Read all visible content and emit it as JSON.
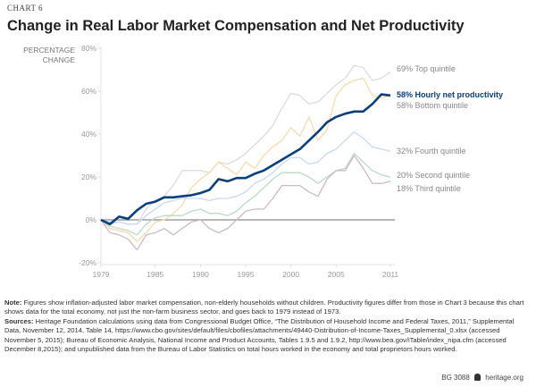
{
  "chart_label": "CHART 6",
  "title": "Change in Real Labor Market Compensation and Net Productivity",
  "note_label": "Note:",
  "note_text": "Figures show inflation-adjusted labor market compensation, non-elderly households without children. Productivity figures differ from those in Chart 3 because this chart shows data for the total economy, not just the non-farm business sector, and goes back to 1979 instead of 1973.",
  "sources_label": "Sources:",
  "sources_text": "Heritage Foundation calculations using data from Congressional Budget Office, “The Distribution of Household Income and Federal Taxes, 2011,” Supplemental Data, November 12, 2014, Table 14, https://www.cbo.gov/sites/default/files/cbofiles/attachments/49440-Distribution-of-Income-Taxes_Supplemental_0.xlsx (accessed November 5, 2015); Bureau of Economic Analysis, National Income and Product Accounts, Tables 1.9.5 and 1.9.2, http://www.bea.gov/iTable/index_nipa.cfm (accessed December 8,2015); and unpublished data from the Bureau of Labor Statistics on total hours worked in the economy and total proprietors hours worked.",
  "footer": {
    "code": "BG 3088",
    "logo_icon": "liberty-bell-icon",
    "site": "heritage.org"
  },
  "chart_data": {
    "type": "line",
    "ylabel_line1": "PERCENTAGE",
    "ylabel_line2": "CHANGE",
    "xlim": [
      1979,
      2011
    ],
    "ylim": [
      -20,
      80
    ],
    "x_ticks": [
      "1979",
      "1985",
      "1990",
      "1995",
      "2000",
      "2005",
      "2011"
    ],
    "y_ticks": [
      "80%",
      "60%",
      "40%",
      "20%",
      "0%",
      "-20%"
    ],
    "x": [
      1979,
      1980,
      1981,
      1982,
      1983,
      1984,
      1985,
      1986,
      1987,
      1988,
      1989,
      1990,
      1991,
      1992,
      1993,
      1994,
      1995,
      1996,
      1997,
      1998,
      1999,
      2000,
      2001,
      2002,
      2003,
      2004,
      2005,
      2006,
      2007,
      2008,
      2009,
      2010,
      2011
    ],
    "series": [
      {
        "name": "Top quintile",
        "label": "69% Top quintile",
        "color": "#dcdcdc",
        "values": [
          0,
          -2,
          -1,
          -2,
          -2,
          5,
          9,
          11,
          16,
          23,
          23,
          23,
          22,
          27,
          26,
          28,
          31,
          35,
          39,
          44,
          52,
          59,
          58,
          54,
          55,
          59,
          63,
          66,
          72,
          71,
          65,
          66,
          69
        ]
      },
      {
        "name": "Bottom quintile",
        "label": "58% Bottom quintile",
        "color": "#f6dcaa",
        "values": [
          0,
          -4,
          -5,
          -6,
          -10,
          -6,
          -1,
          0,
          3,
          7,
          15,
          19,
          22,
          27,
          24,
          21,
          27,
          24,
          30,
          34,
          37,
          43,
          39,
          48,
          37,
          42,
          58,
          63,
          65,
          66,
          58,
          57,
          58
        ]
      },
      {
        "name": "Fourth quintile",
        "label": "32% Fourth quintile",
        "color": "#c9d9ec",
        "values": [
          0,
          -1,
          -1,
          -2,
          -2,
          2,
          5,
          8,
          9,
          10,
          10,
          10,
          9,
          10,
          10,
          11,
          13,
          17,
          19,
          22,
          26,
          29,
          29,
          26,
          27,
          31,
          33,
          37,
          41,
          38,
          34,
          33,
          32
        ]
      },
      {
        "name": "Second quintile",
        "label": "20% Second quintile",
        "color": "#b9dcc6",
        "values": [
          0,
          -3,
          -4,
          -5,
          -7,
          -2,
          1,
          2,
          2,
          2,
          4,
          5,
          3,
          3,
          2,
          4,
          8,
          11,
          15,
          19,
          22,
          22,
          22,
          20,
          17,
          20,
          23,
          24,
          31,
          27,
          23,
          21,
          20
        ]
      },
      {
        "name": "Third quintile",
        "label": "18% Third quintile",
        "color": "#cdbac3",
        "values": [
          0,
          -6,
          -7,
          -9,
          -14,
          -7,
          -6,
          -4,
          -7,
          -4,
          -1,
          0,
          -4,
          -6,
          -4,
          0,
          4,
          5,
          5,
          10,
          16,
          16,
          16,
          13,
          11,
          19,
          23,
          23,
          30,
          24,
          17,
          17,
          18
        ]
      },
      {
        "name": "Hourly net productivity",
        "label": "58% Hourly net productivity",
        "color": "#0b3f7c",
        "values": [
          0,
          -2,
          1.5,
          0.5,
          4.5,
          7.5,
          8.5,
          10.5,
          10.5,
          11,
          11.5,
          12.5,
          14,
          19,
          18,
          19.5,
          19.5,
          21.5,
          23,
          25.5,
          28,
          30.5,
          33,
          37,
          41,
          45.5,
          48,
          49.5,
          50.5,
          50.5,
          54,
          58.5,
          58
        ]
      }
    ],
    "grid": false,
    "legend": "right-end labels"
  }
}
